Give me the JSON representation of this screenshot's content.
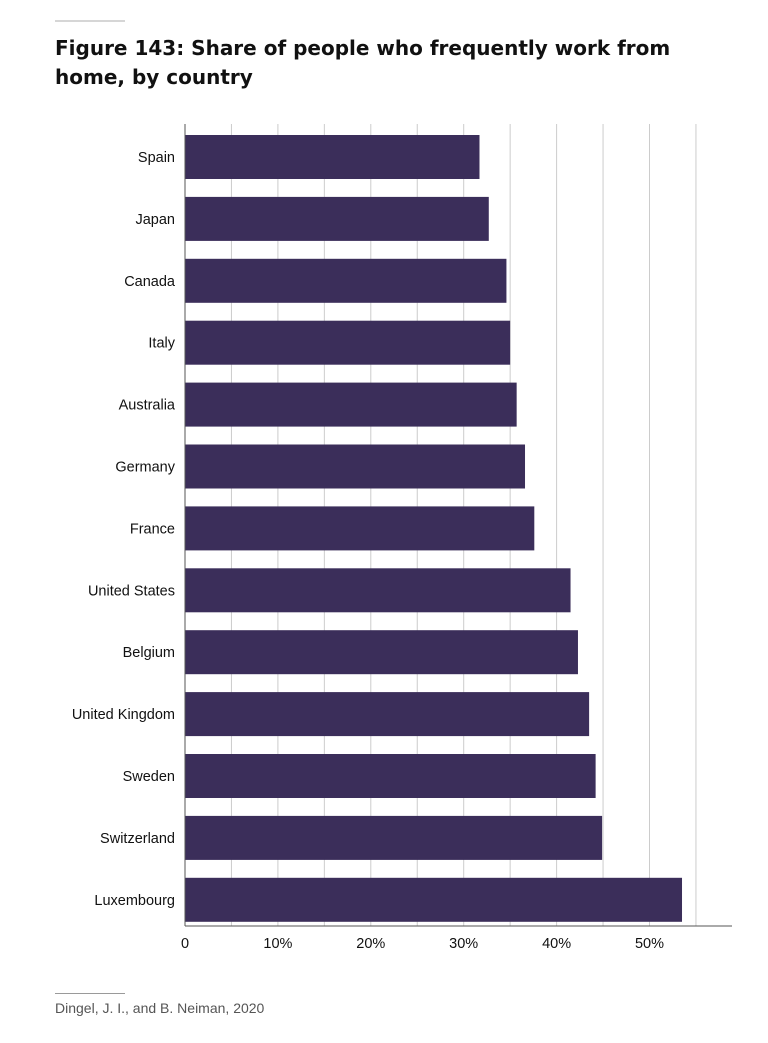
{
  "figure": {
    "title": "Figure 143: Share of people who frequently work from home, by country",
    "source": "Dingel, J. I., and B. Neiman, 2020"
  },
  "colors": {
    "bar": "#3b2e5a",
    "grid": "#cccccc",
    "axis": "#555555"
  },
  "chart_data": {
    "type": "bar",
    "orientation": "horizontal",
    "title": "Figure 143: Share of people who frequently work from home, by country",
    "xlabel": "",
    "ylabel": "",
    "categories": [
      "Spain",
      "Japan",
      "Canada",
      "Italy",
      "Australia",
      "Germany",
      "France",
      "United States",
      "Belgium",
      "United Kingdom",
      "Sweden",
      "Switzerland",
      "Luxembourg"
    ],
    "values": [
      31.7,
      32.7,
      34.6,
      35.0,
      35.7,
      36.6,
      37.6,
      41.5,
      42.3,
      43.5,
      44.2,
      44.9,
      53.5
    ],
    "xlim": [
      0,
      58
    ],
    "ticks": [
      0,
      10,
      20,
      30,
      40,
      50
    ],
    "tick_labels": [
      "0",
      "10%",
      "20%",
      "30%",
      "40%",
      "50%"
    ],
    "gridlines": [
      5,
      10,
      15,
      20,
      25,
      30,
      35,
      40,
      45,
      50,
      55
    ],
    "grid": true,
    "legend": "none"
  }
}
